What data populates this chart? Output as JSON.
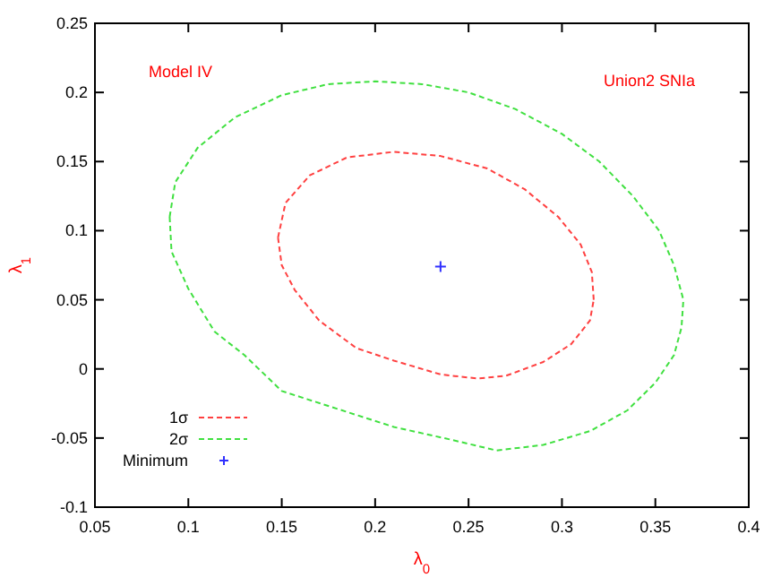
{
  "chart_data": {
    "type": "line",
    "xlabel": "λ$_{0}$",
    "ylabel": "λ$_{1}$",
    "annotations": [
      "Model IV",
      "Union2 SNIa"
    ],
    "xlim": [
      0.05,
      0.4
    ],
    "xticks": [
      0.05,
      0.1,
      0.15,
      0.2,
      0.25,
      0.3,
      0.35,
      0.4
    ],
    "ylim": [
      -0.1,
      0.25
    ],
    "yticks": [
      -0.1,
      -0.05,
      0,
      0.05,
      0.1,
      0.15,
      0.2,
      0.25
    ],
    "grid": false,
    "legend": "bottom left",
    "line_style": "dashed",
    "series": [
      {
        "name": "1σ",
        "color": "#ff4040",
        "x": [
          0.148,
          0.152,
          0.165,
          0.185,
          0.21,
          0.235,
          0.26,
          0.28,
          0.298,
          0.31,
          0.316,
          0.317,
          null,
          0.148,
          0.15,
          0.157,
          0.17,
          0.19,
          0.21,
          0.235,
          0.255,
          0.27,
          0.29,
          0.305,
          0.315,
          0.317
        ],
        "values": [
          0.095,
          0.12,
          0.14,
          0.153,
          0.157,
          0.154,
          0.145,
          0.13,
          0.11,
          0.09,
          0.07,
          0.05,
          null,
          0.095,
          0.075,
          0.057,
          0.035,
          0.015,
          0.006,
          -0.004,
          -0.007,
          -0.005,
          0.005,
          0.018,
          0.035,
          0.05
        ]
      },
      {
        "name": "2σ",
        "color": "#40e040",
        "x": [
          0.09,
          0.093,
          0.105,
          0.125,
          0.15,
          0.175,
          0.2,
          0.225,
          0.25,
          0.275,
          0.3,
          0.32,
          0.338,
          0.352,
          0.36,
          0.365,
          null,
          0.09,
          0.091,
          0.096,
          0.1,
          0.114,
          0.13,
          0.15,
          0.18,
          0.21,
          0.24,
          0.265,
          0.29,
          0.315,
          0.335,
          0.35,
          0.36,
          0.364,
          0.365
        ],
        "values": [
          0.11,
          0.135,
          0.16,
          0.182,
          0.198,
          0.206,
          0.208,
          0.206,
          0.2,
          0.188,
          0.17,
          0.15,
          0.125,
          0.1,
          0.075,
          0.05,
          null,
          0.11,
          0.085,
          0.07,
          0.058,
          0.027,
          0.01,
          -0.016,
          -0.029,
          -0.042,
          -0.051,
          -0.059,
          -0.055,
          -0.045,
          -0.03,
          -0.01,
          0.01,
          0.03,
          0.05
        ]
      },
      {
        "name": "Minimum",
        "type": "scatter",
        "marker": "cross",
        "color": "#3030ff",
        "x": [
          0.235
        ],
        "values": [
          0.074
        ]
      }
    ]
  }
}
